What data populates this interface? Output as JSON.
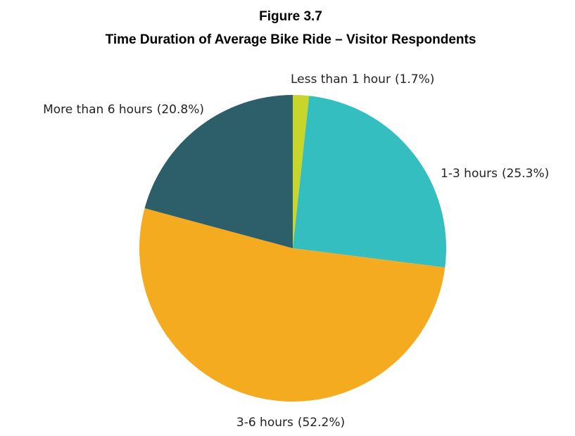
{
  "chart_data": {
    "type": "pie",
    "title": "Figure 3.7",
    "subtitle": "Time Duration of Average Bike Ride – Visitor Respondents",
    "categories": [
      "Less than 1 hour",
      "1-3 hours",
      "3-6 hours",
      "More than 6 hours"
    ],
    "values": [
      1.7,
      25.3,
      52.2,
      20.8
    ],
    "value_labels": [
      "(1.7%)",
      "(25.3%)",
      "(52.2%)",
      "(20.8%)"
    ],
    "colors": [
      "#c8d52a",
      "#35bec0",
      "#f5ab1f",
      "#2d5f6b"
    ]
  }
}
